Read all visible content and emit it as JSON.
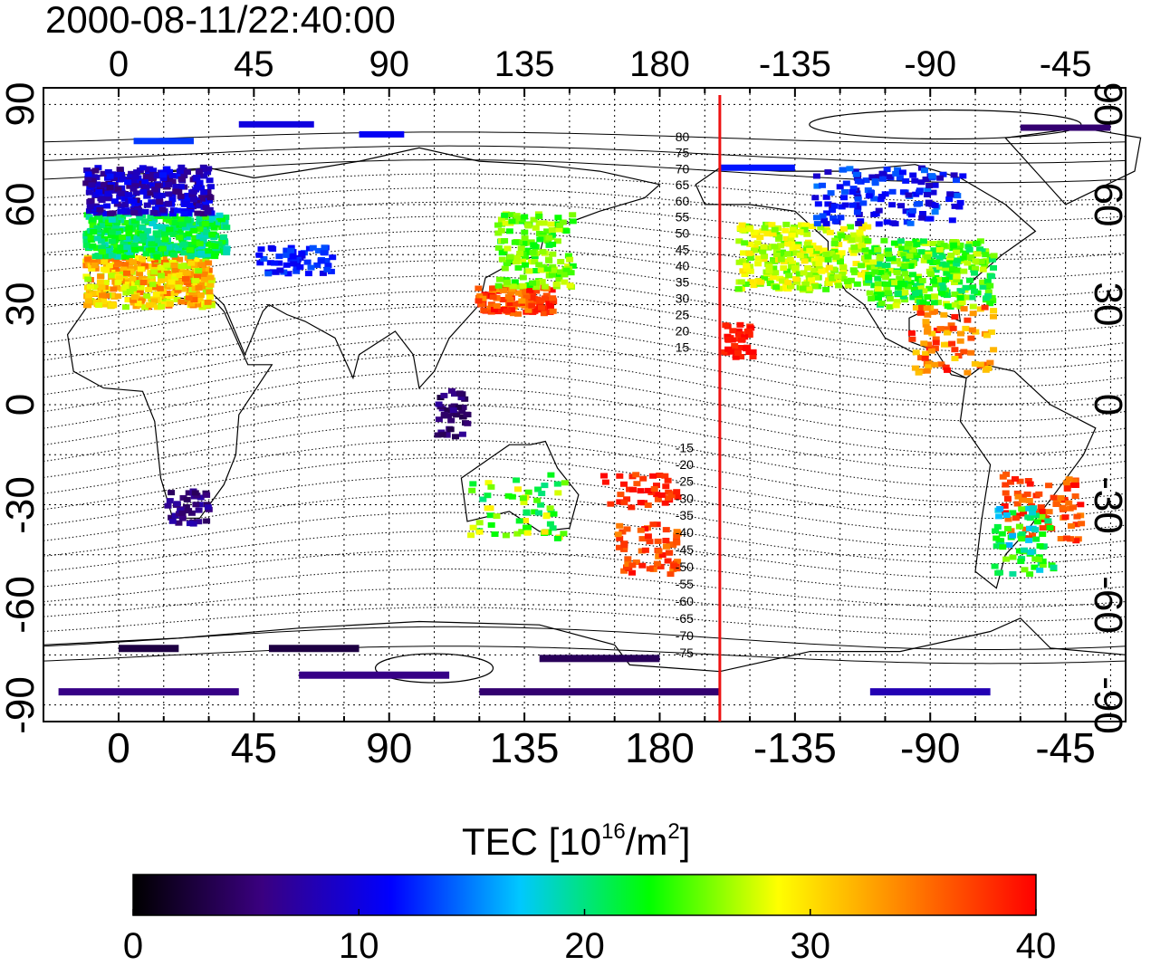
{
  "timestamp": "2000-08-11/22:40:00",
  "map": {
    "projection": "equirectangular",
    "lon_range": [
      -25,
      335
    ],
    "lat_range": [
      -95,
      95
    ],
    "meridian_marker_lon": 200,
    "top_ticks": [
      "0",
      "45",
      "90",
      "135",
      "180",
      "-135",
      "-90",
      "-45"
    ],
    "bottom_ticks": [
      "0",
      "45",
      "90",
      "135",
      "180",
      "-135",
      "-90",
      "-45"
    ],
    "left_ticks": [
      "90",
      "60",
      "30",
      "0",
      "-30",
      "-60",
      "-90"
    ],
    "right_ticks": [
      "90",
      "60",
      "30",
      "0",
      "-30",
      "-60",
      "-90"
    ],
    "contour_labels": [
      "80",
      "75",
      "70",
      "65",
      "60",
      "55",
      "50",
      "45",
      "40",
      "35",
      "30",
      "25",
      "20",
      "15",
      "-15",
      "-20",
      "-25",
      "-30",
      "-35",
      "-40",
      "-45",
      "-50",
      "-55",
      "-60",
      "-65",
      "-70",
      "-75"
    ],
    "grid": "dotted"
  },
  "colorbar": {
    "title": "TEC  [10",
    "title_exp": "16",
    "title_unit": "/m",
    "title_unit_exp": "2",
    "title_close": "]",
    "min": 0,
    "max": 40,
    "ticks": [
      "0",
      "10",
      "20",
      "30",
      "40"
    ],
    "colors": [
      "#000000",
      "#3a0080",
      "#0000ff",
      "#00c8ff",
      "#00ff00",
      "#ffff00",
      "#ff8000",
      "#ff0000"
    ]
  }
}
